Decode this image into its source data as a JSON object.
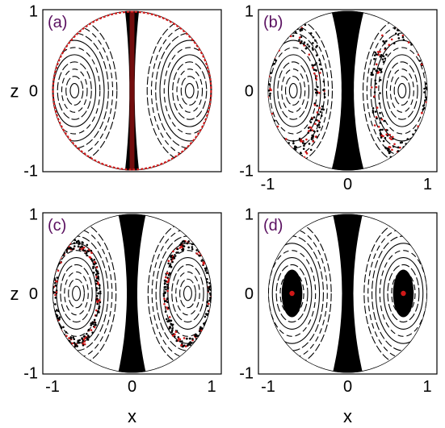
{
  "colors": {
    "orbit": "#000000",
    "chaos": "#d01818",
    "label": "#5a1060",
    "background": "#ffffff"
  },
  "chart_data": [
    {
      "type": "scatter",
      "panel_label": "(a)",
      "xlabel": "",
      "ylabel": "z",
      "xlim": [
        -1,
        1
      ],
      "ylim": [
        -1,
        1
      ],
      "xticks": [
        "",
        "",
        ""
      ],
      "yticks": [
        "1",
        "0",
        "-1"
      ],
      "centers": [
        [
          -0.72,
          0.0
        ],
        [
          0.72,
          0.0
        ]
      ],
      "separatrix_width": 0.06,
      "red_feature": "boundary",
      "description": ""
    },
    {
      "type": "scatter",
      "panel_label": "(b)",
      "xlabel": "",
      "ylabel": "",
      "xlim": [
        -1,
        1
      ],
      "ylim": [
        -1,
        1
      ],
      "xticks": [
        "-1",
        "0",
        "1"
      ],
      "yticks": [
        "1",
        "0",
        "-1"
      ],
      "centers": [
        [
          -0.68,
          0.0
        ],
        [
          0.68,
          0.0
        ]
      ],
      "separatrix_width": 0.14,
      "red_feature": "ring",
      "ring_radius": [
        0.5,
        0.72
      ]
    },
    {
      "type": "scatter",
      "panel_label": "(c)",
      "xlabel": "x",
      "ylabel": "z",
      "xlim": [
        -1,
        1
      ],
      "ylim": [
        -1,
        1
      ],
      "xticks": [
        "-1",
        "0",
        "1"
      ],
      "yticks": [
        "1",
        "0",
        "-1"
      ],
      "centers": [
        [
          -0.7,
          0.0
        ],
        [
          0.7,
          0.0
        ]
      ],
      "separatrix_width": 0.12,
      "red_feature": "ring",
      "ring_radius": [
        0.45,
        0.55
      ]
    },
    {
      "type": "scatter",
      "panel_label": "(d)",
      "xlabel": "x",
      "ylabel": "",
      "xlim": [
        -1,
        1
      ],
      "ylim": [
        -1,
        1
      ],
      "xticks": [
        "-1",
        "0",
        "1"
      ],
      "yticks": [
        "1",
        "0",
        "-1"
      ],
      "centers": [
        [
          -0.7,
          0.0
        ],
        [
          0.7,
          0.0
        ]
      ],
      "separatrix_width": 0.13,
      "red_feature": "center",
      "red_point": [
        0.68,
        0.0
      ]
    }
  ]
}
